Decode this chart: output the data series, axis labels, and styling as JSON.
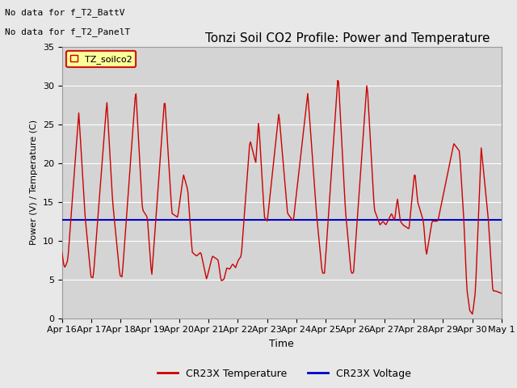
{
  "title": "Tonzi Soil CO2 Profile: Power and Temperature",
  "ylabel": "Power (V) / Temperature (C)",
  "xlabel": "Time",
  "top_annotations": [
    "No data for f_T2_BattV",
    "No data for f_T2_PanelT"
  ],
  "legend_box_label": "TZ_soilco2",
  "ylim": [
    0,
    35
  ],
  "yticks": [
    0,
    5,
    10,
    15,
    20,
    25,
    30,
    35
  ],
  "xtick_labels": [
    "Apr 16",
    "Apr 17",
    "Apr 18",
    "Apr 19",
    "Apr 20",
    "Apr 21",
    "Apr 22",
    "Apr 23",
    "Apr 24",
    "Apr 25",
    "Apr 26",
    "Apr 27",
    "Apr 28",
    "Apr 29",
    "Apr 30",
    "May 1"
  ],
  "voltage_value": 12.65,
  "fig_bg_color": "#e8e8e8",
  "plot_bg_color": "#d4d4d4",
  "temp_color": "#cc0000",
  "voltage_color": "#0000cc",
  "legend_items": [
    "CR23X Temperature",
    "CR23X Voltage"
  ],
  "legend_colors": [
    "#cc0000",
    "#0000cc"
  ],
  "title_fontsize": 11,
  "axis_fontsize": 8,
  "n_days": 15.2
}
